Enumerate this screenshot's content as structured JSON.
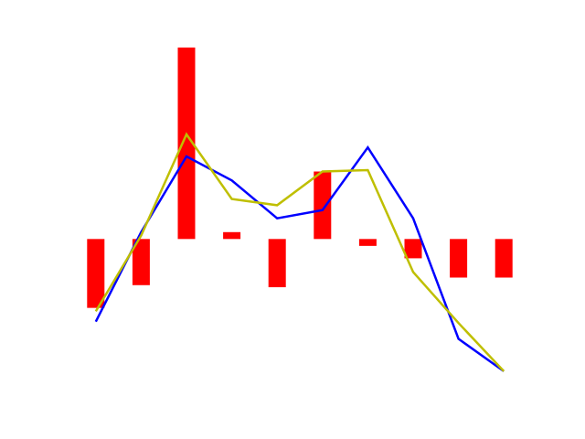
{
  "chart_data": {
    "type": "bar",
    "title": "",
    "xlabel": "",
    "ylabel": "",
    "x": [
      0,
      1,
      2,
      3,
      4,
      5,
      6,
      7,
      8,
      9
    ],
    "ylim": [
      -2.2,
      2.7
    ],
    "grid": false,
    "axes_visible": false,
    "series": [
      {
        "kind": "bar",
        "color": "#ff0000",
        "values": [
          -1.0,
          -0.67,
          2.78,
          0.1,
          -0.7,
          0.98,
          -0.1,
          -0.28,
          -0.56,
          -0.56
        ]
      },
      {
        "kind": "line",
        "color": "#0000ff",
        "values": [
          -1.2,
          0.1,
          1.2,
          0.85,
          0.3,
          0.42,
          1.33,
          0.3,
          -1.45,
          -1.92
        ]
      },
      {
        "kind": "line",
        "color": "#bfbf00",
        "values": [
          -1.05,
          0.05,
          1.52,
          0.58,
          0.49,
          0.98,
          1.0,
          -0.48,
          -1.22,
          -1.92
        ]
      }
    ]
  }
}
